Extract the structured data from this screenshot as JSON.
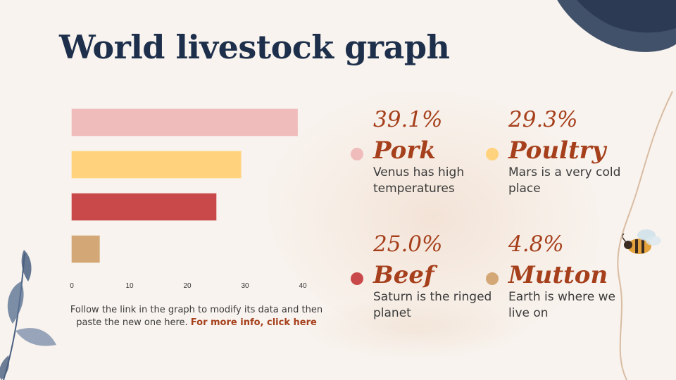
{
  "slide": {
    "title": "World livestock graph"
  },
  "chart_data": {
    "type": "bar",
    "orientation": "horizontal",
    "categories": [
      "Pork",
      "Poultry",
      "Beef",
      "Mutton"
    ],
    "values": [
      39.1,
      29.3,
      25.0,
      4.8
    ],
    "colors": [
      "#f0bcbb",
      "#ffd27d",
      "#c9494a",
      "#d3a876"
    ],
    "xlim": [
      0,
      40
    ],
    "xticks": [
      "0",
      "10",
      "20",
      "30",
      "40"
    ],
    "title": "",
    "xlabel": "",
    "ylabel": "",
    "grid": false
  },
  "caption": {
    "text": "Follow the link in the graph to modify its data and then paste the new one here.",
    "link": "For more info, click here"
  },
  "stats": [
    {
      "pct": "39.1%",
      "name": "Pork",
      "desc": "Venus has high temperatures",
      "color": "#f0bcbb"
    },
    {
      "pct": "29.3%",
      "name": "Poultry",
      "desc": "Mars is a very cold place",
      "color": "#ffd27d"
    },
    {
      "pct": "25.0%",
      "name": "Beef",
      "desc": "Saturn is the ringed planet",
      "color": "#c9494a"
    },
    {
      "pct": "4.8%",
      "name": "Mutton",
      "desc": "Earth is where we live on",
      "color": "#d3a876"
    }
  ]
}
